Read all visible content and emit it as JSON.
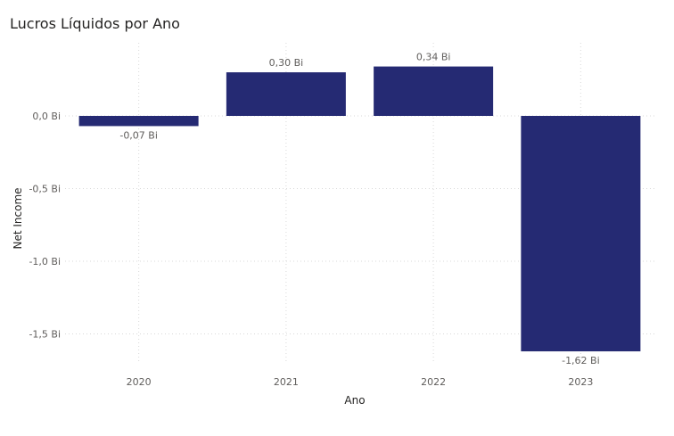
{
  "chart_data": {
    "type": "bar",
    "title": "Lucros Líquidos por Ano",
    "xlabel": "Ano",
    "ylabel": "Net Income",
    "categories": [
      "2020",
      "2021",
      "2022",
      "2023"
    ],
    "values": [
      -0.07,
      0.3,
      0.34,
      -1.62
    ],
    "data_labels": [
      "-0,07 Bi",
      "0,30 Bi",
      "0,34 Bi",
      "-1,62 Bi"
    ],
    "yticks": [
      0.0,
      -0.5,
      -1.0,
      -1.5
    ],
    "ytick_labels": [
      "0,0 Bi",
      "-0,5 Bi",
      "-1,0 Bi",
      "-1,5 Bi"
    ],
    "ylim": [
      -1.62,
      0.34
    ],
    "grid": true,
    "bar_color": "#252a73"
  }
}
